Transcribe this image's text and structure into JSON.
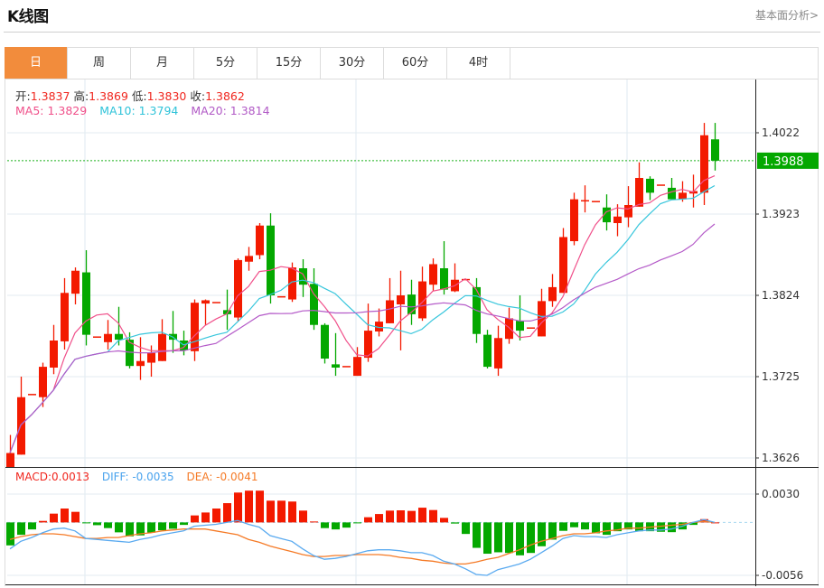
{
  "header": {
    "title": "K线图",
    "link": "基本面分析>"
  },
  "tabs": [
    {
      "label": "日",
      "active": true
    },
    {
      "label": "周"
    },
    {
      "label": "月"
    },
    {
      "label": "5分"
    },
    {
      "label": "15分"
    },
    {
      "label": "30分"
    },
    {
      "label": "60分"
    },
    {
      "label": "4时"
    }
  ],
  "legend": {
    "ohlc": [
      {
        "label": "开:",
        "value": "1.3837"
      },
      {
        "label": "高:",
        "value": "1.3869"
      },
      {
        "label": "低:",
        "value": "1.3830"
      },
      {
        "label": "收:",
        "value": "1.3862"
      }
    ],
    "ma": [
      {
        "text": "MA5: 1.3829",
        "color": "#f0508a"
      },
      {
        "text": "MA10: 1.3794",
        "color": "#2fc3d9"
      },
      {
        "text": "MA20: 1.3814",
        "color": "#b15ac6"
      }
    ],
    "macd": [
      {
        "text": "MACD:0.0013",
        "color": "#f0261e"
      },
      {
        "text": "DIFF: -0.0035",
        "color": "#4aa3ee"
      },
      {
        "text": "DEA: -0.0041",
        "color": "#f57a26"
      }
    ]
  },
  "colors": {
    "up": "#f31a00",
    "down": "#04a800",
    "ma5": "#f0508a",
    "ma10": "#37c6dc",
    "ma20": "#b45ac8",
    "diff": "#5aaaf0",
    "dea": "#f57a26",
    "tab_active": "#f28c3c"
  },
  "chart_data": [
    {
      "type": "candlestick",
      "title": "",
      "ylim": [
        1.3626,
        1.4022
      ],
      "yticks": [
        "1.4022",
        "1.3923",
        "1.3824",
        "1.3725",
        "1.3626"
      ],
      "grid": true,
      "current_price": "1.3988",
      "ma_periods": [
        5,
        10,
        20
      ],
      "ohlc": [
        [
          1.3615,
          1.3654,
          1.3615,
          1.3632
        ],
        [
          1.363,
          1.3725,
          1.363,
          1.37
        ],
        [
          1.3704,
          1.3704,
          1.3704,
          1.3704
        ],
        [
          1.37,
          1.3742,
          1.3688,
          1.3737
        ],
        [
          1.3736,
          1.3788,
          1.3728,
          1.3769
        ],
        [
          1.3768,
          1.3845,
          1.3758,
          1.3827
        ],
        [
          1.3826,
          1.3858,
          1.3813,
          1.3854
        ],
        [
          1.3852,
          1.3879,
          1.3763,
          1.3776
        ],
        [
          1.3774,
          1.3774,
          1.3774,
          1.3774
        ],
        [
          1.3767,
          1.3794,
          1.3758,
          1.3777
        ],
        [
          1.3777,
          1.381,
          1.3763,
          1.377
        ],
        [
          1.377,
          1.3779,
          1.3735,
          1.3738
        ],
        [
          1.3738,
          1.3773,
          1.3721,
          1.3744
        ],
        [
          1.3742,
          1.3763,
          1.3725,
          1.3754
        ],
        [
          1.3744,
          1.3795,
          1.3744,
          1.3777
        ],
        [
          1.3777,
          1.3805,
          1.3754,
          1.377
        ],
        [
          1.3769,
          1.3781,
          1.3751,
          1.3757
        ],
        [
          1.3756,
          1.3819,
          1.3744,
          1.3815
        ],
        [
          1.3814,
          1.3819,
          1.3788,
          1.3818
        ],
        [
          1.3816,
          1.3816,
          1.3816,
          1.3816
        ],
        [
          1.3806,
          1.3831,
          1.3782,
          1.3801
        ],
        [
          1.3797,
          1.3869,
          1.3792,
          1.3867
        ],
        [
          1.3865,
          1.3883,
          1.3854,
          1.3872
        ],
        [
          1.3873,
          1.3912,
          1.3868,
          1.3909
        ],
        [
          1.3909,
          1.3924,
          1.3814,
          1.3824
        ],
        [
          1.3823,
          1.3823,
          1.3823,
          1.3823
        ],
        [
          1.3819,
          1.3864,
          1.3816,
          1.3858
        ],
        [
          1.3857,
          1.3868,
          1.3822,
          1.3837
        ],
        [
          1.3838,
          1.3857,
          1.3782,
          1.3788
        ],
        [
          1.3788,
          1.379,
          1.3741,
          1.3747
        ],
        [
          1.374,
          1.3778,
          1.3726,
          1.3736
        ],
        [
          1.3738,
          1.3738,
          1.3738,
          1.3738
        ],
        [
          1.3726,
          1.3761,
          1.3726,
          1.3749
        ],
        [
          1.3748,
          1.3814,
          1.3743,
          1.3781
        ],
        [
          1.378,
          1.3808,
          1.3774,
          1.3792
        ],
        [
          1.379,
          1.3845,
          1.379,
          1.3818
        ],
        [
          1.3813,
          1.3854,
          1.3757,
          1.3824
        ],
        [
          1.3825,
          1.3843,
          1.3788,
          1.3801
        ],
        [
          1.3796,
          1.3859,
          1.3793,
          1.3841
        ],
        [
          1.3837,
          1.3869,
          1.383,
          1.3862
        ],
        [
          1.3857,
          1.389,
          1.3825,
          1.3831
        ],
        [
          1.3829,
          1.3863,
          1.3828,
          1.3843
        ],
        [
          1.3844,
          1.3844,
          1.3844,
          1.3844
        ],
        [
          1.3834,
          1.3845,
          1.3766,
          1.3777
        ],
        [
          1.3776,
          1.3782,
          1.3735,
          1.3737
        ],
        [
          1.3735,
          1.3787,
          1.3726,
          1.3772
        ],
        [
          1.3771,
          1.3809,
          1.3765,
          1.3796
        ],
        [
          1.3793,
          1.3824,
          1.3769,
          1.3781
        ],
        [
          1.3785,
          1.3785,
          1.3785,
          1.3785
        ],
        [
          1.3774,
          1.3832,
          1.3774,
          1.3817
        ],
        [
          1.3817,
          1.385,
          1.381,
          1.3834
        ],
        [
          1.3827,
          1.3906,
          1.3827,
          1.3895
        ],
        [
          1.389,
          1.3949,
          1.3885,
          1.3941
        ],
        [
          1.394,
          1.3958,
          1.3925,
          1.394
        ],
        [
          1.3939,
          1.3939,
          1.3939,
          1.3939
        ],
        [
          1.3931,
          1.3947,
          1.3903,
          1.3913
        ],
        [
          1.3912,
          1.3935,
          1.3896,
          1.392
        ],
        [
          1.3919,
          1.3957,
          1.3907,
          1.3934
        ],
        [
          1.3932,
          1.3986,
          1.3932,
          1.3967
        ],
        [
          1.3966,
          1.3969,
          1.394,
          1.3949
        ],
        [
          1.3959,
          1.3959,
          1.3959,
          1.3959
        ],
        [
          1.3955,
          1.3967,
          1.3941,
          1.3941
        ],
        [
          1.3941,
          1.3963,
          1.3938,
          1.3949
        ],
        [
          1.3948,
          1.3971,
          1.3931,
          1.3951
        ],
        [
          1.3949,
          1.4034,
          1.3934,
          1.4019
        ],
        [
          1.4014,
          1.4034,
          1.3976,
          1.3988
        ]
      ]
    },
    {
      "type": "macd",
      "title": "",
      "ylim": [
        -0.0056,
        0.003
      ],
      "yticks": [
        "0.0030",
        "-0.0056"
      ],
      "macd": [
        -0.00243,
        -0.00131,
        -0.00074,
        0.00016,
        0.00093,
        0.00147,
        0.00112,
        -3e-05,
        -0.00029,
        -0.0006,
        -0.00105,
        -0.00147,
        -0.00137,
        -0.00108,
        -0.00083,
        -0.00067,
        -0.00026,
        0.00074,
        0.00105,
        0.00147,
        0.00204,
        0.00316,
        0.00336,
        0.00336,
        0.0023,
        0.0023,
        0.00221,
        0.00125,
        0.0001,
        -0.0006,
        -0.00074,
        -0.00055,
        -3e-05,
        0.00055,
        0.00089,
        0.00125,
        0.00128,
        0.00122,
        0.00156,
        0.00131,
        0.00048,
        -0.00012,
        -0.00122,
        -0.00269,
        -0.00331,
        -0.00316,
        -0.00323,
        -0.00348,
        -0.00323,
        -0.00252,
        -0.00182,
        -0.00089,
        -0.00051,
        -0.00074,
        -0.00115,
        -0.00131,
        -0.00093,
        -0.00074,
        -0.00093,
        -0.00093,
        -0.00099,
        -0.00103,
        -0.00074,
        -0.00026,
        0.00035,
        0.0
      ],
      "diff": [
        -0.0028,
        -0.002,
        -0.0016,
        -0.0011,
        -0.0007,
        -0.0006,
        -0.0009,
        -0.0017,
        -0.0018,
        -0.0019,
        -0.002,
        -0.0021,
        -0.0018,
        -0.0016,
        -0.0013,
        -0.0011,
        -0.0009,
        -0.0004,
        -0.0003,
        -0.0002,
        0.0,
        0.0002,
        -0.0002,
        -0.0005,
        -0.0014,
        -0.0017,
        -0.002,
        -0.0028,
        -0.0035,
        -0.0039,
        -0.0038,
        -0.0036,
        -0.0033,
        -0.003,
        -0.0029,
        -0.0029,
        -0.003,
        -0.0032,
        -0.0032,
        -0.0035,
        -0.0041,
        -0.0044,
        -0.0049,
        -0.0055,
        -0.0056,
        -0.005,
        -0.0047,
        -0.0044,
        -0.0039,
        -0.0032,
        -0.0025,
        -0.0017,
        -0.0014,
        -0.0015,
        -0.0015,
        -0.0016,
        -0.0013,
        -0.0011,
        -0.0009,
        -0.0008,
        -0.0008,
        -0.0007,
        -0.0004,
        0.0,
        0.0003,
        0.0
      ],
      "dea": [
        -0.0018,
        -0.0015,
        -0.0013,
        -0.0012,
        -0.0012,
        -0.0013,
        -0.0015,
        -0.0017,
        -0.0017,
        -0.0016,
        -0.0016,
        -0.0014,
        -0.0012,
        -0.0011,
        -0.0009,
        -0.0008,
        -0.0007,
        -0.0007,
        -0.0007,
        -0.0009,
        -0.0011,
        -0.0013,
        -0.0018,
        -0.0021,
        -0.0025,
        -0.0028,
        -0.0031,
        -0.0034,
        -0.0036,
        -0.0036,
        -0.0035,
        -0.0035,
        -0.0034,
        -0.0034,
        -0.0034,
        -0.0035,
        -0.0037,
        -0.0038,
        -0.004,
        -0.0041,
        -0.0043,
        -0.0044,
        -0.0044,
        -0.0042,
        -0.0039,
        -0.0037,
        -0.0033,
        -0.0029,
        -0.0024,
        -0.002,
        -0.0017,
        -0.0014,
        -0.0012,
        -0.0012,
        -0.0011,
        -0.0009,
        -0.0008,
        -0.0006,
        -0.0006,
        -0.0005,
        -0.0004,
        -0.0003,
        -0.0002,
        0.0,
        0.0001,
        0.0
      ]
    }
  ]
}
